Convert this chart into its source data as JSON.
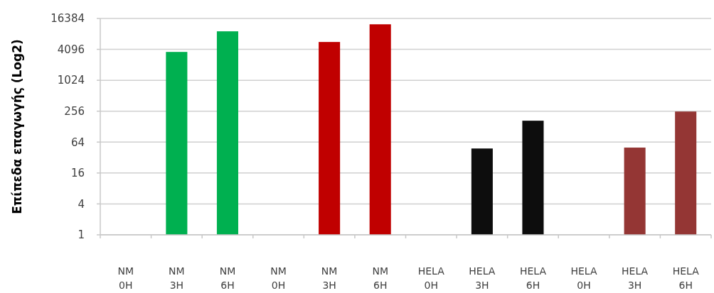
{
  "chart_data": {
    "type": "bar",
    "ylabel": "Επίπεδα επαγωγής (Log2)",
    "log": true,
    "grid": "y",
    "categories": [
      "NM 0H",
      "NM 3H",
      "NM 6H",
      "NM 0H",
      "NM 3H",
      "NM 6H",
      "HELA 0H",
      "HELA 3H",
      "HELA 6H",
      "HELA 0H",
      "HELA 3H",
      "HELA 6H"
    ],
    "values": [
      1,
      3650,
      9200,
      1,
      5700,
      12600,
      1,
      48,
      167,
      1,
      50,
      252
    ],
    "colors": [
      "#00b050",
      "#00b050",
      "#00b050",
      "#c00000",
      "#c00000",
      "#c00000",
      "#0d0d0d",
      "#0d0d0d",
      "#0d0d0d",
      "#943634",
      "#943634",
      "#943634"
    ],
    "ylim": [
      1,
      16384
    ],
    "yticks": [
      1,
      4,
      16,
      64,
      256,
      1024,
      4096,
      16384
    ]
  }
}
